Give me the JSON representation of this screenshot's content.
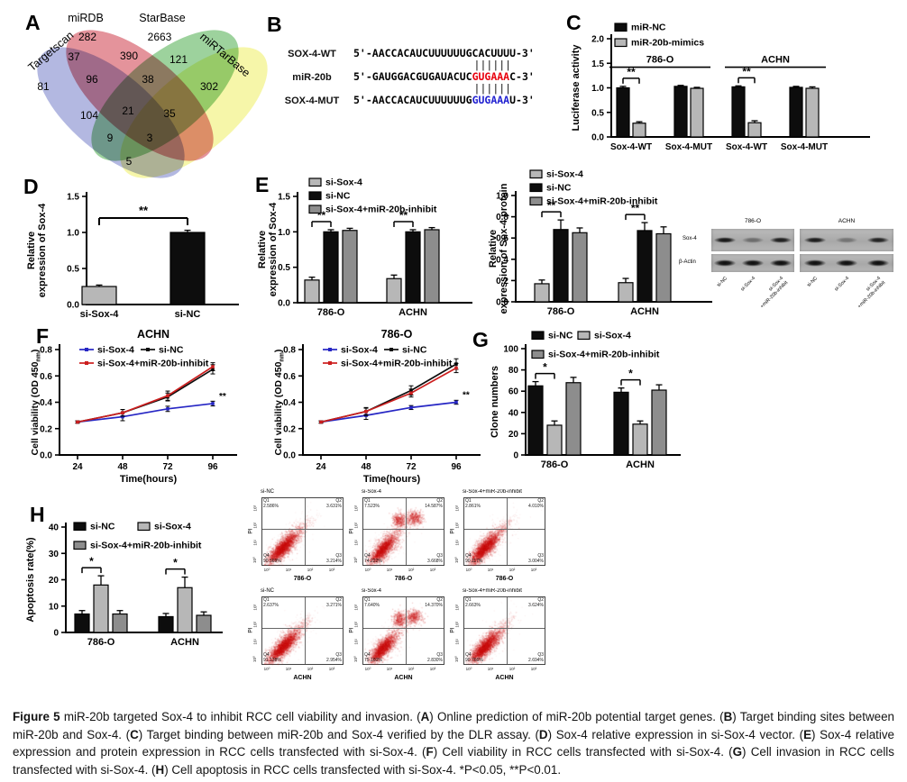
{
  "panel_letters": {
    "a": "A",
    "b": "B",
    "c": "C",
    "d": "D",
    "e": "E",
    "f": "F",
    "g": "G",
    "h": "H"
  },
  "venn": {
    "sets": [
      {
        "name": "Targetscan",
        "color": "#959dd5"
      },
      {
        "name": "miRDB",
        "color": "#d96a75"
      },
      {
        "name": "StarBase",
        "color": "#77c177"
      },
      {
        "name": "miRTarBase",
        "color": "#f2f288"
      }
    ],
    "regions": [
      {
        "id": "targetscan-only",
        "v": "81"
      },
      {
        "id": "mirdb-only",
        "v": "282"
      },
      {
        "id": "starbase-only",
        "v": "2663"
      },
      {
        "id": "mirtarbase-only",
        "v": "302"
      },
      {
        "id": "targetscan-mirdb",
        "v": "37"
      },
      {
        "id": "mirdb-starbase",
        "v": "390"
      },
      {
        "id": "starbase-mirtarbase",
        "v": "121"
      },
      {
        "id": "targetscan-mirdb-starbase",
        "v": "96"
      },
      {
        "id": "mirdb-starbase-mirtarbase",
        "v": "38"
      },
      {
        "id": "targetscan-starbase",
        "v": "104"
      },
      {
        "id": "all-four",
        "v": "21"
      },
      {
        "id": "mirdb-mirtarbase",
        "v": "35"
      },
      {
        "id": "targetscan-starbase-mirtarbase",
        "v": "9"
      },
      {
        "id": "targetscan-mirdb-mirtarbase",
        "v": "3"
      },
      {
        "id": "targetscan-mirtarbase",
        "v": "5"
      }
    ]
  },
  "alignment": {
    "rows": [
      {
        "label": "SOX-4-WT",
        "parts": [
          {
            "t": "5'-AACCACAUCUUUUUUGCACUUUU-3'",
            "color": "#000000"
          }
        ]
      },
      {
        "pipes": "||||||",
        "offset": 19
      },
      {
        "label": "miR-20b",
        "parts": [
          {
            "t": "5'-GAUGGACGUGAUACUC",
            "color": "#000000"
          },
          {
            "t": "GUGAAA",
            "color": "#e8000d"
          },
          {
            "t": "C-3'",
            "color": "#000000"
          }
        ]
      },
      {
        "pipes": "||||||",
        "offset": 19
      },
      {
        "label": "SOX-4-MUT",
        "parts": [
          {
            "t": "5'-AACCACAUCUUUUUUG",
            "color": "#000000"
          },
          {
            "t": "GUGAAA",
            "color": "#1f1fd0"
          },
          {
            "t": "U-3'",
            "color": "#000000"
          }
        ]
      }
    ]
  },
  "western": {
    "groups": [
      "786-O",
      "ACHN"
    ],
    "rows": [
      "Sox-4",
      "β-Actin"
    ],
    "lanes": [
      "si-NC",
      "si-Sox-4",
      "si-Sox-4\n+miR-20b-inhibit"
    ],
    "band_intensity": [
      [
        [
          0.95,
          0.4,
          0.9
        ],
        [
          0.92,
          0.35,
          0.88
        ]
      ],
      [
        [
          1,
          1,
          1
        ],
        [
          1,
          1,
          1
        ]
      ]
    ]
  },
  "chart_data": [
    {
      "id": "c",
      "type": "bar",
      "ylabel": "Luciferase activity",
      "ylim": [
        0,
        2.0
      ],
      "ytick_step": 0.5,
      "categories": [
        "Sox-4-WT",
        "Sox-4-MUT",
        "Sox-4-WT",
        "Sox-4-MUT"
      ],
      "cell_line_headers": [
        {
          "label": "786-O",
          "from": 0,
          "to": 1
        },
        {
          "label": "ACHN",
          "from": 2,
          "to": 3
        }
      ],
      "series": [
        {
          "name": "miR-NC",
          "color": "#0d0d0d",
          "values": [
            1.0,
            1.03,
            1.02,
            1.01
          ],
          "errors": [
            0.03,
            0.02,
            0.02,
            0.02
          ]
        },
        {
          "name": "miR-20b-mimics",
          "color": "#b7b7b7",
          "values": [
            0.28,
            0.99,
            0.29,
            0.99
          ],
          "errors": [
            0.03,
            0.02,
            0.04,
            0.03
          ]
        }
      ],
      "sig": [
        {
          "cat": 0,
          "s0": 0,
          "s1": 1,
          "label": "**"
        },
        {
          "cat": 2,
          "s0": 0,
          "s1": 1,
          "label": "**"
        }
      ]
    },
    {
      "id": "d",
      "type": "bar",
      "ylabel": "Relative\nexpression of Sox-4",
      "ylim": [
        0,
        1.5
      ],
      "ytick_step": 0.5,
      "categories": [
        "si-Sox-4",
        "si-NC"
      ],
      "series": [
        {
          "name": "",
          "colors": [
            "#b7b7b7",
            "#0d0d0d"
          ],
          "values": [
            0.25,
            1.0
          ],
          "errors": [
            0.02,
            0.03
          ]
        }
      ],
      "sig_span": {
        "label": "**",
        "y": 1.2
      }
    },
    {
      "id": "e1",
      "type": "bar",
      "ylabel": "Relative\nexpression of Sox-4",
      "ylim": [
        0,
        1.5
      ],
      "ytick_step": 0.5,
      "categories": [
        "786-O",
        "ACHN"
      ],
      "series": [
        {
          "name": "si-Sox-4",
          "color": "#b7b7b7",
          "values": [
            0.32,
            0.34
          ],
          "errors": [
            0.04,
            0.05
          ]
        },
        {
          "name": "si-NC",
          "color": "#0d0d0d",
          "values": [
            1.0,
            1.0
          ],
          "errors": [
            0.03,
            0.03
          ]
        },
        {
          "name": "si-Sox-4+miR-20b-inhibit",
          "color": "#8d8d8d",
          "values": [
            1.02,
            1.03
          ],
          "errors": [
            0.03,
            0.03
          ]
        }
      ],
      "sig": [
        {
          "cat": 0,
          "s0": 0,
          "s1": 1,
          "label": "**"
        },
        {
          "cat": 1,
          "s0": 0,
          "s1": 1,
          "label": "**"
        }
      ]
    },
    {
      "id": "e2",
      "type": "bar",
      "ylabel": "Relative\nexpression of Sox-4 protein",
      "ylim": [
        0,
        1.0
      ],
      "ytick_step": 0.2,
      "categories": [
        "786-O",
        "ACHN"
      ],
      "series": [
        {
          "name": "si-Sox-4",
          "color": "#b7b7b7",
          "values": [
            0.17,
            0.18
          ],
          "errors": [
            0.035,
            0.04
          ]
        },
        {
          "name": "si-NC",
          "color": "#0d0d0d",
          "values": [
            0.68,
            0.67
          ],
          "errors": [
            0.09,
            0.075
          ]
        },
        {
          "name": "si-Sox-4+miR-20b-inhibit",
          "color": "#8d8d8d",
          "values": [
            0.65,
            0.64
          ],
          "errors": [
            0.045,
            0.065
          ]
        }
      ],
      "sig": [
        {
          "cat": 0,
          "s0": 0,
          "s1": 1,
          "label": "**"
        },
        {
          "cat": 1,
          "s0": 0,
          "s1": 1,
          "label": "**"
        }
      ]
    },
    {
      "id": "f1",
      "type": "line",
      "title": "ACHN",
      "xlabel": "Time(hours)",
      "ylabel_parts": [
        {
          "t": "Cell viability (OD 450"
        },
        {
          "t": "nm",
          "sub": true
        },
        {
          "t": ")"
        }
      ],
      "ylim": [
        0,
        0.8
      ],
      "ytick_step": 0.2,
      "x": [
        24,
        48,
        72,
        96
      ],
      "sig_label": "**",
      "series": [
        {
          "name": "si-Sox-4",
          "color": "#2626c4",
          "values": [
            0.25,
            0.29,
            0.35,
            0.39
          ],
          "errors": [
            0.008,
            0.03,
            0.02,
            0.018
          ]
        },
        {
          "name": "si-NC",
          "color": "#0d0d0d",
          "values": [
            0.25,
            0.32,
            0.44,
            0.65
          ],
          "errors": [
            0.008,
            0.025,
            0.03,
            0.035
          ]
        },
        {
          "name": "si-Sox-4+miR-20b-inhibit",
          "color": "#cc1f1f",
          "values": [
            0.25,
            0.32,
            0.45,
            0.67
          ],
          "errors": [
            0.008,
            0.025,
            0.035,
            0.03
          ]
        }
      ]
    },
    {
      "id": "f2",
      "type": "line",
      "title": "786-O",
      "xlabel": "Time(hours)",
      "ylabel_parts": [
        {
          "t": "Cell viability (OD 450"
        },
        {
          "t": "nm",
          "sub": true
        },
        {
          "t": ")"
        }
      ],
      "ylim": [
        0,
        0.8
      ],
      "ytick_step": 0.2,
      "x": [
        24,
        48,
        72,
        96
      ],
      "sig_label": "**",
      "series": [
        {
          "name": "si-Sox-4",
          "color": "#2626c4",
          "values": [
            0.25,
            0.3,
            0.36,
            0.4
          ],
          "errors": [
            0.008,
            0.03,
            0.015,
            0.015
          ]
        },
        {
          "name": "si-NC",
          "color": "#0d0d0d",
          "values": [
            0.25,
            0.33,
            0.49,
            0.69
          ],
          "errors": [
            0.008,
            0.03,
            0.035,
            0.04
          ]
        },
        {
          "name": "si-Sox-4+miR-20b-inhibit",
          "color": "#cc1f1f",
          "values": [
            0.25,
            0.33,
            0.47,
            0.66
          ],
          "errors": [
            0.008,
            0.025,
            0.03,
            0.035
          ]
        }
      ]
    },
    {
      "id": "g",
      "type": "bar",
      "ylabel": "Clone numbers",
      "ylim": [
        0,
        100
      ],
      "ytick_step": 20,
      "categories": [
        "786-O",
        "ACHN"
      ],
      "series": [
        {
          "name": "si-NC",
          "color": "#0d0d0d",
          "values": [
            65,
            59
          ],
          "errors": [
            4,
            4
          ]
        },
        {
          "name": "si-Sox-4",
          "color": "#b7b7b7",
          "values": [
            28,
            29
          ],
          "errors": [
            4,
            3
          ]
        },
        {
          "name": "si-Sox-4+miR-20b-inhibit",
          "color": "#8d8d8d",
          "values": [
            68,
            61
          ],
          "errors": [
            5,
            5
          ]
        }
      ],
      "sig": [
        {
          "cat": 0,
          "s0": 0,
          "s1": 1,
          "label": "*"
        },
        {
          "cat": 1,
          "s0": 0,
          "s1": 1,
          "label": "*"
        }
      ]
    },
    {
      "id": "h",
      "type": "bar",
      "ylabel": "Apoptosis rate(%)",
      "ylim": [
        0,
        40
      ],
      "ytick_step": 10,
      "categories": [
        "786-O",
        "ACHN"
      ],
      "series": [
        {
          "name": "si-NC",
          "color": "#0d0d0d",
          "values": [
            7,
            6
          ],
          "errors": [
            1.3,
            1.2
          ]
        },
        {
          "name": "si-Sox-4",
          "color": "#b7b7b7",
          "values": [
            18,
            17
          ],
          "errors": [
            3.5,
            4
          ]
        },
        {
          "name": "si-Sox-4+miR-20b-inhibit",
          "color": "#8d8d8d",
          "values": [
            7,
            6.5
          ],
          "errors": [
            1.3,
            1.3
          ]
        }
      ],
      "sig": [
        {
          "cat": 0,
          "s0": 0,
          "s1": 1,
          "label": "*"
        },
        {
          "cat": 1,
          "s0": 0,
          "s1": 1,
          "label": "*"
        }
      ]
    },
    {
      "id": "flow",
      "type": "flow_cytometry",
      "y_axis_label": "PI",
      "x_ticks": [
        "10⁰",
        "10¹",
        "10²",
        "10³"
      ],
      "y_ticks": [
        "10⁰",
        "10¹",
        "10²",
        "10³"
      ],
      "rows": [
        {
          "xlabel": "786-O",
          "plots": [
            {
              "title": "si-NC",
              "profile": "low",
              "q1": "2.586%",
              "q2": "3.631%",
              "q3": "3.214%",
              "q4": "90.569%"
            },
            {
              "title": "si-Sox-4",
              "profile": "high",
              "q1": "7.523%",
              "q2": "14.587%",
              "q3": "3.668%",
              "q4": "74.222%"
            },
            {
              "title": "si-Sox-4+miR-20b-inhibit",
              "profile": "low",
              "q1": "2.861%",
              "q2": "4.010%",
              "q3": "3.004%",
              "q4": "90.117%"
            }
          ]
        },
        {
          "xlabel": "ACHN",
          "plots": [
            {
              "title": "si-NC",
              "profile": "low",
              "q1": "2.637%",
              "q2": "3.271%",
              "q3": "2.954%",
              "q4": "91.138%"
            },
            {
              "title": "si-Sox-4",
              "profile": "high",
              "q1": "7.640%",
              "q2": "14.370%",
              "q3": "2.830%",
              "q4": "75.160%"
            },
            {
              "title": "si-Sox-4+miR-20b-inhibit",
              "profile": "low",
              "q1": "2.663%",
              "q2": "3.624%",
              "q3": "2.694%",
              "q4": "90.766%"
            }
          ]
        }
      ]
    }
  ],
  "figure": {
    "caption_segments": [
      {
        "t": "Figure 5",
        "b": true
      },
      {
        "t": " miR-20b targeted Sox-4 to inhibit RCC cell viability and invasion. (",
        "b": false
      },
      {
        "t": "A",
        "b": true
      },
      {
        "t": ") Online prediction of miR-20b potential target genes. (",
        "b": false
      },
      {
        "t": "B",
        "b": true
      },
      {
        "t": ") Target binding sites between miR-20b and Sox-4. (",
        "b": false
      },
      {
        "t": "C",
        "b": true
      },
      {
        "t": ") Target binding between miR-20b and Sox-4 verified by the DLR assay. (",
        "b": false
      },
      {
        "t": "D",
        "b": true
      },
      {
        "t": ") Sox-4 relative expression in si-Sox-4 vector. (",
        "b": false
      },
      {
        "t": "E",
        "b": true
      },
      {
        "t": ") Sox-4 relative expression and protein expression in RCC cells transfected with si-Sox-4. (",
        "b": false
      },
      {
        "t": "F",
        "b": true
      },
      {
        "t": ") Cell viability in RCC cells transfected with si-Sox-4. (",
        "b": false
      },
      {
        "t": "G",
        "b": true
      },
      {
        "t": ") Cell invasion in RCC cells transfected with si-Sox-4. (",
        "b": false
      },
      {
        "t": "H",
        "b": true
      },
      {
        "t": ") Cell apoptosis in RCC cells transfected with si-Sox-4. *P<0.05, **P<0.01.",
        "b": false
      }
    ]
  }
}
